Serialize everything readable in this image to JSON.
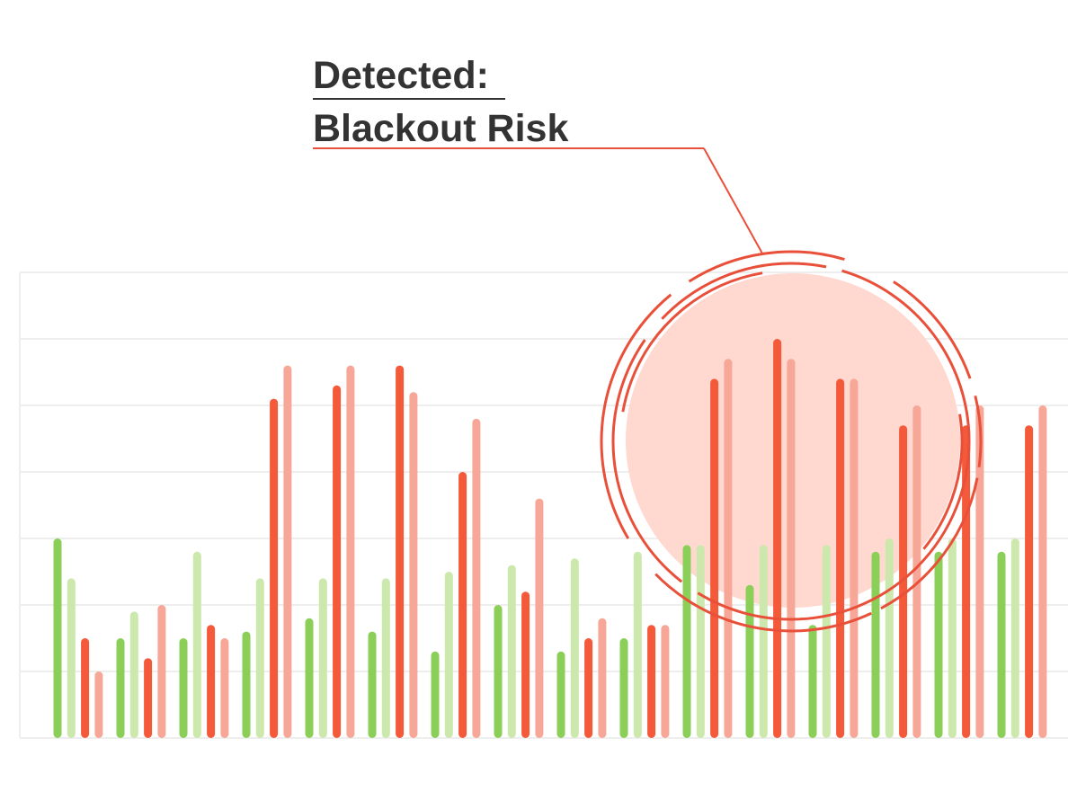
{
  "chart_data": {
    "type": "bar",
    "annotation": [
      "Detected:",
      "Blackout Risk"
    ],
    "categories": [
      null,
      null,
      null,
      null,
      null,
      null,
      null,
      null,
      null,
      null,
      null,
      null,
      null,
      null,
      null,
      null
    ],
    "series": [
      {
        "color": "#8ccf58",
        "values": [
          3.0,
          1.5,
          1.5,
          1.6,
          1.8,
          1.6,
          1.3,
          2.0,
          1.3,
          1.5,
          2.9,
          2.3,
          1.7,
          2.8,
          2.8,
          2.8
        ]
      },
      {
        "color": "#cde8ad",
        "values": [
          2.4,
          1.9,
          2.8,
          2.4,
          2.4,
          2.4,
          2.5,
          2.6,
          2.7,
          2.8,
          2.9,
          2.9,
          2.9,
          3.0,
          3.0,
          3.0
        ]
      },
      {
        "color": "#f4593a",
        "values": [
          1.5,
          1.2,
          1.7,
          5.1,
          5.3,
          5.6,
          4.0,
          2.2,
          1.5,
          1.7,
          5.4,
          6.0,
          5.4,
          4.7,
          4.7,
          4.7
        ]
      },
      {
        "color": "#f6a797",
        "values": [
          1.0,
          2.0,
          1.5,
          5.6,
          5.6,
          5.2,
          4.8,
          3.6,
          1.8,
          1.7,
          5.7,
          5.7,
          5.4,
          5.0,
          5.0,
          5.0
        ]
      }
    ],
    "ylim": [
      0,
      7
    ],
    "yticks": [
      0,
      1,
      2,
      3,
      4,
      5,
      6,
      7
    ],
    "grid": true
  }
}
